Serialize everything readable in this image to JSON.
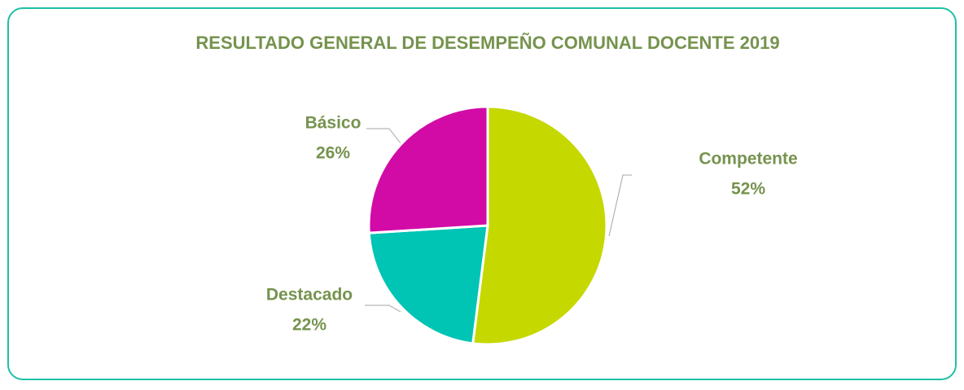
{
  "chart_data": {
    "type": "pie",
    "title": "RESULTADO GENERAL DE DESEMPEÑO COMUNAL DOCENTE 2019",
    "categories": [
      "Competente",
      "Destacado",
      "Básico"
    ],
    "values": [
      52,
      22,
      26
    ],
    "value_labels": [
      "52%",
      "22%",
      "26%"
    ],
    "colors": [
      "#c5d800",
      "#00c4b4",
      "#d20ba6"
    ]
  }
}
